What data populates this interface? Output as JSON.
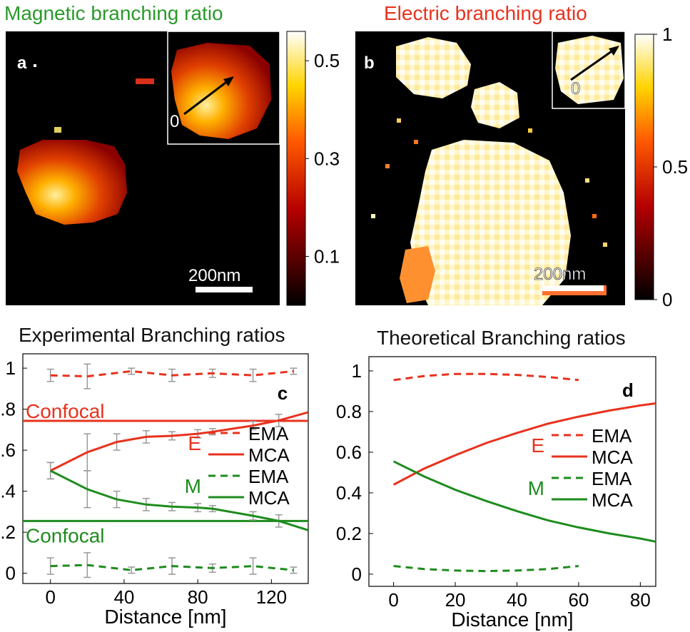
{
  "panel_a": {
    "title": "Magnetic branching ratio",
    "letter": "a",
    "inset_zero": "0",
    "scalebar": "200nm",
    "colorbar_ticks": [
      "0.5",
      "0.3",
      "0.1"
    ],
    "colorbar_values": [
      0.5,
      0.3,
      0.1
    ],
    "colorbar_range": [
      0,
      0.56
    ]
  },
  "panel_b": {
    "title": "Electric branching ratio",
    "letter": "b",
    "inset_zero": "0",
    "scalebar": "200nm",
    "colorbar_ticks": [
      "1",
      "0.5",
      "0"
    ],
    "colorbar_values": [
      1,
      0.5,
      0
    ],
    "colorbar_range": [
      0,
      1
    ]
  },
  "colors": {
    "electric": "#e8321e",
    "magnetic": "#1e8c1e",
    "errorbar": "#999999",
    "title_a": "#2a9a2a",
    "title_b": "#e8321e"
  },
  "chart_data": [
    {
      "type": "line",
      "title": "Experimental Branching ratios",
      "panel_label": "c",
      "xlabel": "Distance [nm]",
      "xlim": [
        -15,
        140
      ],
      "ylim": [
        -0.05,
        1.07
      ],
      "xticks": [
        "0",
        "40",
        "80",
        "120"
      ],
      "xtick_values": [
        0,
        40,
        80,
        120
      ],
      "yticks": [
        "0",
        ".2",
        ".4",
        ".6",
        ".8",
        "1"
      ],
      "ytick_values": [
        0,
        0.2,
        0.4,
        0.6,
        0.8,
        1.0
      ],
      "annotations": {
        "confocal_e": "Confocal",
        "confocal_m": "Confocal",
        "confocal_e_y": 0.743,
        "confocal_m_y": 0.255
      },
      "legend": {
        "e_group": "E",
        "m_group": "M",
        "ema": "EMA",
        "mca": "MCA"
      },
      "series": [
        {
          "name": "EMA",
          "group": "E",
          "style": "dashed",
          "x": [
            0,
            20,
            44,
            66,
            88,
            110,
            132
          ],
          "y": [
            0.965,
            0.96,
            0.985,
            0.965,
            0.975,
            0.965,
            0.985
          ],
          "err": [
            0.03,
            0.06,
            0.015,
            0.03,
            0.02,
            0.03,
            0.015
          ]
        },
        {
          "name": "MCA",
          "group": "E",
          "style": "solid",
          "x": [
            0,
            20,
            36,
            52,
            66,
            80,
            88,
            110,
            124,
            140
          ],
          "y": [
            0.5,
            0.59,
            0.64,
            0.665,
            0.67,
            0.68,
            0.69,
            0.72,
            0.745,
            0.785
          ],
          "err": [
            0.04,
            0.09,
            0.04,
            0.03,
            0.02,
            0.02,
            0.015,
            0.02,
            0.03,
            0
          ]
        },
        {
          "name": "EMA",
          "group": "M",
          "style": "dashed",
          "x": [
            0,
            20,
            44,
            66,
            88,
            110,
            132
          ],
          "y": [
            0.035,
            0.04,
            0.015,
            0.035,
            0.025,
            0.035,
            0.015
          ],
          "err": [
            0.04,
            0.06,
            0.015,
            0.04,
            0.02,
            0.04,
            0.015
          ]
        },
        {
          "name": "MCA",
          "group": "M",
          "style": "solid",
          "x": [
            0,
            20,
            36,
            52,
            66,
            80,
            88,
            110,
            124,
            140
          ],
          "y": [
            0.5,
            0.41,
            0.36,
            0.335,
            0.325,
            0.32,
            0.315,
            0.28,
            0.255,
            0.21
          ],
          "err": [
            0.04,
            0.09,
            0.04,
            0.03,
            0.02,
            0.02,
            0.015,
            0.02,
            0.03,
            0
          ]
        }
      ]
    },
    {
      "type": "line",
      "title": "Theoretical Branching ratios",
      "panel_label": "d",
      "xlabel": "Distance [nm]",
      "xlim": [
        -8,
        85
      ],
      "ylim": [
        -0.06,
        1.07
      ],
      "xticks": [
        "0",
        "20",
        "40",
        "60",
        "80"
      ],
      "xtick_values": [
        0,
        20,
        40,
        60,
        80
      ],
      "yticks": [
        "0",
        "0.2",
        "0.4",
        "0.6",
        "0.8",
        "1"
      ],
      "ytick_values": [
        0,
        0.2,
        0.4,
        0.6,
        0.8,
        1.0
      ],
      "legend": {
        "e_group": "E",
        "m_group": "M",
        "ema": "EMA",
        "mca": "MCA"
      },
      "series": [
        {
          "name": "EMA",
          "group": "E",
          "style": "dashed",
          "x": [
            0,
            10,
            20,
            30,
            40,
            50,
            60
          ],
          "y": [
            0.955,
            0.975,
            0.985,
            0.985,
            0.98,
            0.97,
            0.955
          ]
        },
        {
          "name": "MCA",
          "group": "E",
          "style": "solid",
          "x": [
            0,
            10,
            20,
            30,
            40,
            50,
            60,
            70,
            80,
            85
          ],
          "y": [
            0.44,
            0.52,
            0.585,
            0.645,
            0.695,
            0.74,
            0.775,
            0.805,
            0.83,
            0.84
          ]
        },
        {
          "name": "EMA",
          "group": "M",
          "style": "dashed",
          "x": [
            0,
            10,
            20,
            30,
            40,
            50,
            60
          ],
          "y": [
            0.04,
            0.025,
            0.018,
            0.015,
            0.018,
            0.025,
            0.04
          ]
        },
        {
          "name": "MCA",
          "group": "M",
          "style": "solid",
          "x": [
            0,
            10,
            20,
            30,
            40,
            50,
            60,
            70,
            80,
            85
          ],
          "y": [
            0.555,
            0.48,
            0.415,
            0.36,
            0.31,
            0.265,
            0.23,
            0.2,
            0.175,
            0.16
          ]
        }
      ]
    }
  ]
}
